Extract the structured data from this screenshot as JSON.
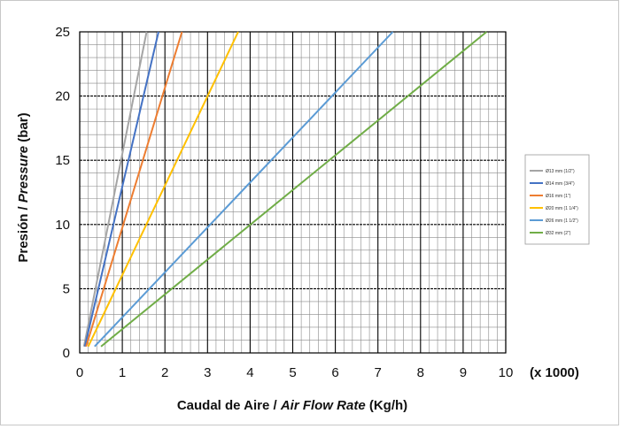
{
  "chart_data": {
    "type": "line",
    "xlabel_plain": "Caudal de Aire / ",
    "xlabel_italic": "Air Flow Rate",
    "xlabel_unit": " (Kg/h)",
    "ylabel_plain": "Presión / ",
    "ylabel_italic": "Pressure",
    "ylabel_unit": " (bar)",
    "x_multiplier": "(x 1000)",
    "xlim": [
      0,
      10
    ],
    "ylim": [
      0,
      25
    ],
    "xticks": [
      "0",
      "1",
      "2",
      "3",
      "4",
      "5",
      "6",
      "7",
      "8",
      "9",
      "10"
    ],
    "yticks": [
      "0",
      "5",
      "10",
      "15",
      "20",
      "25"
    ],
    "grid": true,
    "legend_position": "right",
    "series": [
      {
        "name": "Ø13 mm (1/2\")",
        "color": "#a5a5a5",
        "x": [
          0.1,
          1.57
        ],
        "y": [
          0.5,
          25
        ]
      },
      {
        "name": "Ø14 mm (3/4\")",
        "color": "#4472c4",
        "x": [
          0.12,
          1.85
        ],
        "y": [
          0.5,
          25
        ]
      },
      {
        "name": "Ø16 mm (1\")",
        "color": "#ed7d31",
        "x": [
          0.15,
          2.4
        ],
        "y": [
          0.5,
          25
        ]
      },
      {
        "name": "Ø20 mm (1 1/4\")",
        "color": "#ffc000",
        "x": [
          0.2,
          3.72
        ],
        "y": [
          0.5,
          25
        ]
      },
      {
        "name": "Ø26 mm (1 1/2\")",
        "color": "#5b9bd5",
        "x": [
          0.35,
          7.35
        ],
        "y": [
          0.5,
          25
        ]
      },
      {
        "name": "Ø32 mm (2\")",
        "color": "#70ad47",
        "x": [
          0.5,
          9.55
        ],
        "y": [
          0.5,
          25
        ]
      }
    ]
  }
}
